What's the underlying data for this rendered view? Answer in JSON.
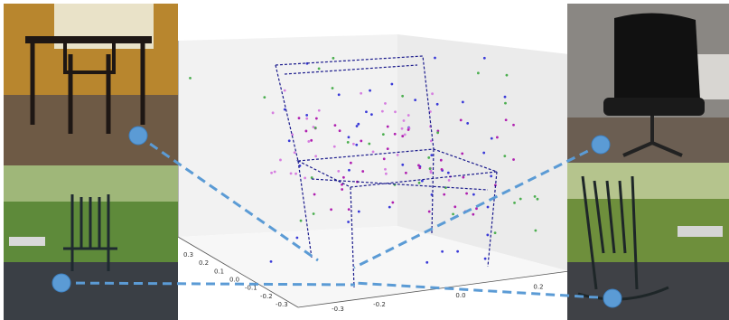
{
  "figure": {
    "left_axis_ticks": [
      "0.3",
      "0.2",
      "0.1",
      "0.0",
      "-0.1",
      "-0.2",
      "-0.3"
    ],
    "bottom_axis_ticks": [
      "-0.3",
      "-0.2",
      "0.0",
      "0.2"
    ]
  }
}
